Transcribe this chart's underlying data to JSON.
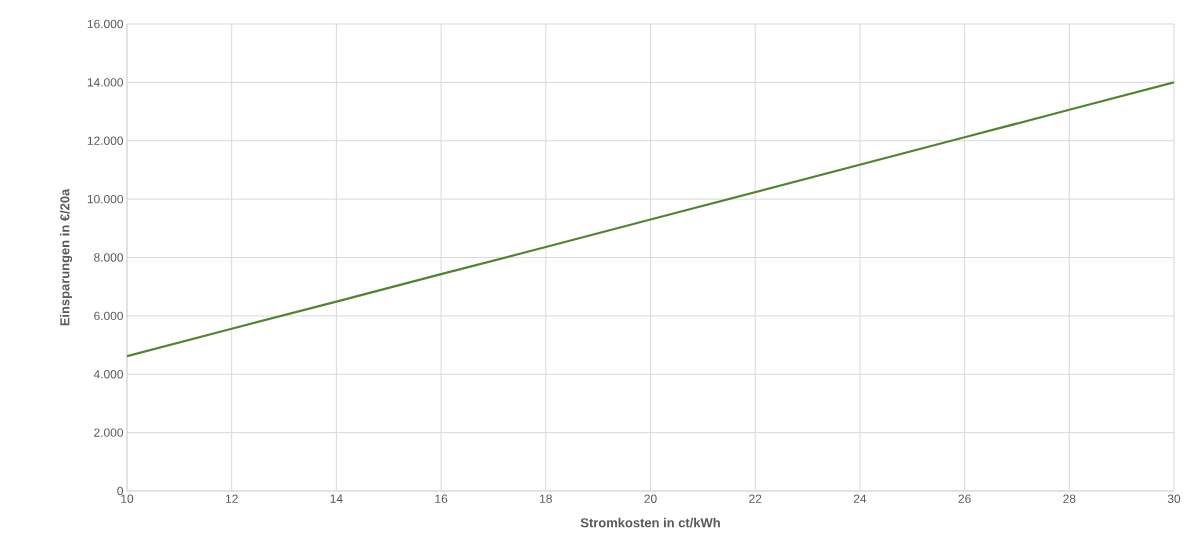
{
  "chart_data": {
    "type": "line",
    "xlabel": "Stromkosten in ct/kWh",
    "ylabel": "Einsparungen in €/20a",
    "x": [
      10,
      12,
      14,
      16,
      18,
      20,
      22,
      24,
      26,
      28,
      30
    ],
    "series": [
      {
        "color": "#548235",
        "values": [
          4620,
          5560,
          6490,
          7430,
          8360,
          9300,
          10240,
          11180,
          12120,
          13060,
          14000
        ]
      }
    ],
    "xlim": [
      10,
      30
    ],
    "xticks": [
      10,
      12,
      14,
      16,
      18,
      20,
      22,
      24,
      26,
      28,
      30
    ],
    "ylim": [
      0,
      16000
    ],
    "yticks": [
      {
        "value": 0,
        "label": "0"
      },
      {
        "value": 2000,
        "label": "2.000"
      },
      {
        "value": 4000,
        "label": "4.000"
      },
      {
        "value": 6000,
        "label": "6.000"
      },
      {
        "value": 8000,
        "label": "8.000"
      },
      {
        "value": 10000,
        "label": "10.000"
      },
      {
        "value": 12000,
        "label": "12.000"
      },
      {
        "value": 14000,
        "label": "14.000"
      },
      {
        "value": 16000,
        "label": "16.000"
      }
    ],
    "grid": true,
    "marker": "none",
    "line_style": "solid"
  }
}
